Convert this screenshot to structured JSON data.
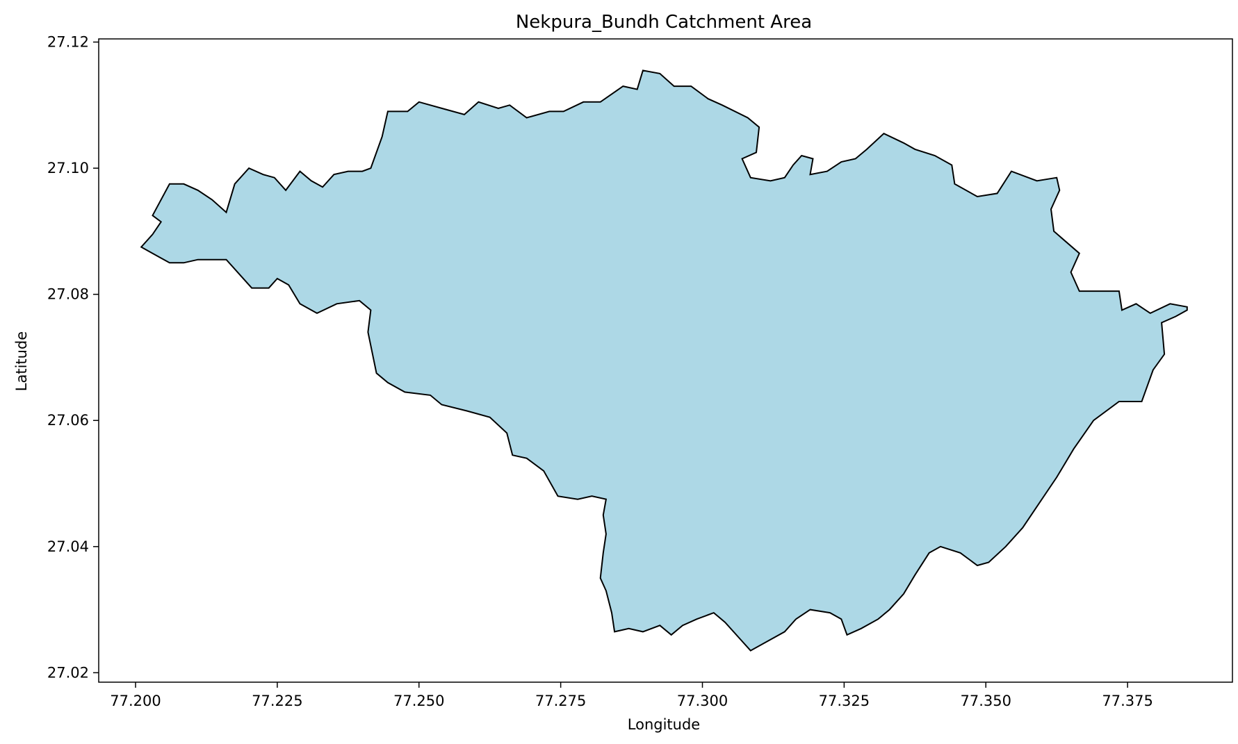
{
  "chart_data": {
    "type": "map",
    "title": "Nekpura_Bundh Catchment Area",
    "xlabel": "Longitude",
    "ylabel": "Latitude",
    "xlim": [
      77.1935,
      77.3935
    ],
    "ylim": [
      27.0185,
      27.1205
    ],
    "xticks": [
      {
        "value": 77.2,
        "label": "77.200"
      },
      {
        "value": 77.225,
        "label": "77.225"
      },
      {
        "value": 77.25,
        "label": "77.250"
      },
      {
        "value": 77.275,
        "label": "77.275"
      },
      {
        "value": 77.3,
        "label": "77.300"
      },
      {
        "value": 77.325,
        "label": "77.325"
      },
      {
        "value": 77.35,
        "label": "77.350"
      },
      {
        "value": 77.375,
        "label": "77.375"
      }
    ],
    "yticks": [
      {
        "value": 27.02,
        "label": "27.02"
      },
      {
        "value": 27.04,
        "label": "27.04"
      },
      {
        "value": 27.06,
        "label": "27.06"
      },
      {
        "value": 27.08,
        "label": "27.08"
      },
      {
        "value": 27.1,
        "label": "27.10"
      },
      {
        "value": 27.12,
        "label": "27.12"
      }
    ],
    "grid": false,
    "fill_color": "#add8e6",
    "edge_color": "#000000",
    "boundary": [
      [
        77.203,
        27.0925
      ],
      [
        77.206,
        27.0975
      ],
      [
        77.2085,
        27.0975
      ],
      [
        77.211,
        27.0965
      ],
      [
        77.2135,
        27.095
      ],
      [
        77.216,
        27.093
      ],
      [
        77.2175,
        27.0975
      ],
      [
        77.22,
        27.1
      ],
      [
        77.2225,
        27.099
      ],
      [
        77.2245,
        27.0985
      ],
      [
        77.2265,
        27.0965
      ],
      [
        77.229,
        27.0995
      ],
      [
        77.231,
        27.098
      ],
      [
        77.233,
        27.097
      ],
      [
        77.235,
        27.099
      ],
      [
        77.2375,
        27.0995
      ],
      [
        77.24,
        27.0995
      ],
      [
        77.2415,
        27.1
      ],
      [
        77.2435,
        27.105
      ],
      [
        77.2445,
        27.109
      ],
      [
        77.248,
        27.109
      ],
      [
        77.25,
        27.1105
      ],
      [
        77.254,
        27.1095
      ],
      [
        77.258,
        27.1085
      ],
      [
        77.2605,
        27.1105
      ],
      [
        77.264,
        27.1095
      ],
      [
        77.266,
        27.11
      ],
      [
        77.269,
        27.108
      ],
      [
        77.273,
        27.109
      ],
      [
        77.2755,
        27.109
      ],
      [
        77.279,
        27.1105
      ],
      [
        77.282,
        27.1105
      ],
      [
        77.286,
        27.113
      ],
      [
        77.2885,
        27.1125
      ],
      [
        77.2895,
        27.1155
      ],
      [
        77.2925,
        27.115
      ],
      [
        77.295,
        27.113
      ],
      [
        77.298,
        27.113
      ],
      [
        77.301,
        27.111
      ],
      [
        77.3035,
        27.11
      ],
      [
        77.308,
        27.108
      ],
      [
        77.31,
        27.1065
      ],
      [
        77.3095,
        27.1025
      ],
      [
        77.307,
        27.1015
      ],
      [
        77.3085,
        27.0985
      ],
      [
        77.312,
        27.098
      ],
      [
        77.3145,
        27.0985
      ],
      [
        77.316,
        27.1005
      ],
      [
        77.3175,
        27.102
      ],
      [
        77.3195,
        27.1015
      ],
      [
        77.319,
        27.099
      ],
      [
        77.322,
        27.0995
      ],
      [
        77.3245,
        27.101
      ],
      [
        77.327,
        27.1015
      ],
      [
        77.329,
        27.103
      ],
      [
        77.332,
        27.1055
      ],
      [
        77.3355,
        27.104
      ],
      [
        77.3375,
        27.103
      ],
      [
        77.341,
        27.102
      ],
      [
        77.344,
        27.1005
      ],
      [
        77.3445,
        27.0975
      ],
      [
        77.3485,
        27.0955
      ],
      [
        77.352,
        27.096
      ],
      [
        77.3545,
        27.0995
      ],
      [
        77.359,
        27.098
      ],
      [
        77.3625,
        27.0985
      ],
      [
        77.363,
        27.0965
      ],
      [
        77.3615,
        27.0935
      ],
      [
        77.362,
        27.09
      ],
      [
        77.3665,
        27.0865
      ],
      [
        77.365,
        27.0835
      ],
      [
        77.3665,
        27.0805
      ],
      [
        77.371,
        27.0805
      ],
      [
        77.3735,
        27.0805
      ],
      [
        77.374,
        27.0775
      ],
      [
        77.3765,
        27.0785
      ],
      [
        77.379,
        27.077
      ],
      [
        77.3825,
        27.0785
      ],
      [
        77.3855,
        27.078
      ],
      [
        77.3855,
        27.0775
      ],
      [
        77.3835,
        27.0765
      ],
      [
        77.381,
        27.0755
      ],
      [
        77.3815,
        27.0705
      ],
      [
        77.3795,
        27.068
      ],
      [
        77.3775,
        27.063
      ],
      [
        77.3735,
        27.063
      ],
      [
        77.369,
        27.06
      ],
      [
        77.3655,
        27.0555
      ],
      [
        77.3625,
        27.051
      ],
      [
        77.3595,
        27.047
      ],
      [
        77.3565,
        27.043
      ],
      [
        77.3535,
        27.04
      ],
      [
        77.3505,
        27.0375
      ],
      [
        77.3485,
        27.037
      ],
      [
        77.3455,
        27.039
      ],
      [
        77.342,
        27.04
      ],
      [
        77.34,
        27.039
      ],
      [
        77.3375,
        27.0355
      ],
      [
        77.3355,
        27.0325
      ],
      [
        77.333,
        27.03
      ],
      [
        77.331,
        27.0285
      ],
      [
        77.328,
        27.027
      ],
      [
        77.3255,
        27.026
      ],
      [
        77.3245,
        27.0285
      ],
      [
        77.3225,
        27.0295
      ],
      [
        77.319,
        27.03
      ],
      [
        77.3165,
        27.0285
      ],
      [
        77.3145,
        27.0265
      ],
      [
        77.3115,
        27.025
      ],
      [
        77.3085,
        27.0235
      ],
      [
        77.3065,
        27.0255
      ],
      [
        77.304,
        27.028
      ],
      [
        77.302,
        27.0295
      ],
      [
        77.299,
        27.0285
      ],
      [
        77.2965,
        27.0275
      ],
      [
        77.2945,
        27.026
      ],
      [
        77.2925,
        27.0275
      ],
      [
        77.2895,
        27.0265
      ],
      [
        77.287,
        27.027
      ],
      [
        77.2845,
        27.0265
      ],
      [
        77.284,
        27.0295
      ],
      [
        77.283,
        27.033
      ],
      [
        77.282,
        27.035
      ],
      [
        77.2825,
        27.039
      ],
      [
        77.283,
        27.042
      ],
      [
        77.2825,
        27.045
      ],
      [
        77.283,
        27.0475
      ],
      [
        77.2805,
        27.048
      ],
      [
        77.278,
        27.0475
      ],
      [
        77.2745,
        27.048
      ],
      [
        77.272,
        27.052
      ],
      [
        77.269,
        27.054
      ],
      [
        77.2665,
        27.0545
      ],
      [
        77.2655,
        27.058
      ],
      [
        77.2625,
        27.0605
      ],
      [
        77.2585,
        27.0615
      ],
      [
        77.254,
        27.0625
      ],
      [
        77.252,
        27.064
      ],
      [
        77.2475,
        27.0645
      ],
      [
        77.2445,
        27.066
      ],
      [
        77.2425,
        27.0675
      ],
      [
        77.241,
        27.074
      ],
      [
        77.2415,
        27.0775
      ],
      [
        77.2395,
        27.079
      ],
      [
        77.2355,
        27.0785
      ],
      [
        77.232,
        27.077
      ],
      [
        77.229,
        27.0785
      ],
      [
        77.227,
        27.0815
      ],
      [
        77.225,
        27.0825
      ],
      [
        77.2235,
        27.081
      ],
      [
        77.2205,
        27.081
      ],
      [
        77.2185,
        27.083
      ],
      [
        77.216,
        27.0855
      ],
      [
        77.2135,
        27.0855
      ],
      [
        77.211,
        27.0855
      ],
      [
        77.2085,
        27.085
      ],
      [
        77.206,
        27.085
      ],
      [
        77.204,
        27.086
      ],
      [
        77.203,
        27.0865
      ],
      [
        77.201,
        27.0875
      ],
      [
        77.203,
        27.0895
      ],
      [
        77.2045,
        27.0915
      ],
      [
        77.203,
        27.0925
      ]
    ]
  }
}
